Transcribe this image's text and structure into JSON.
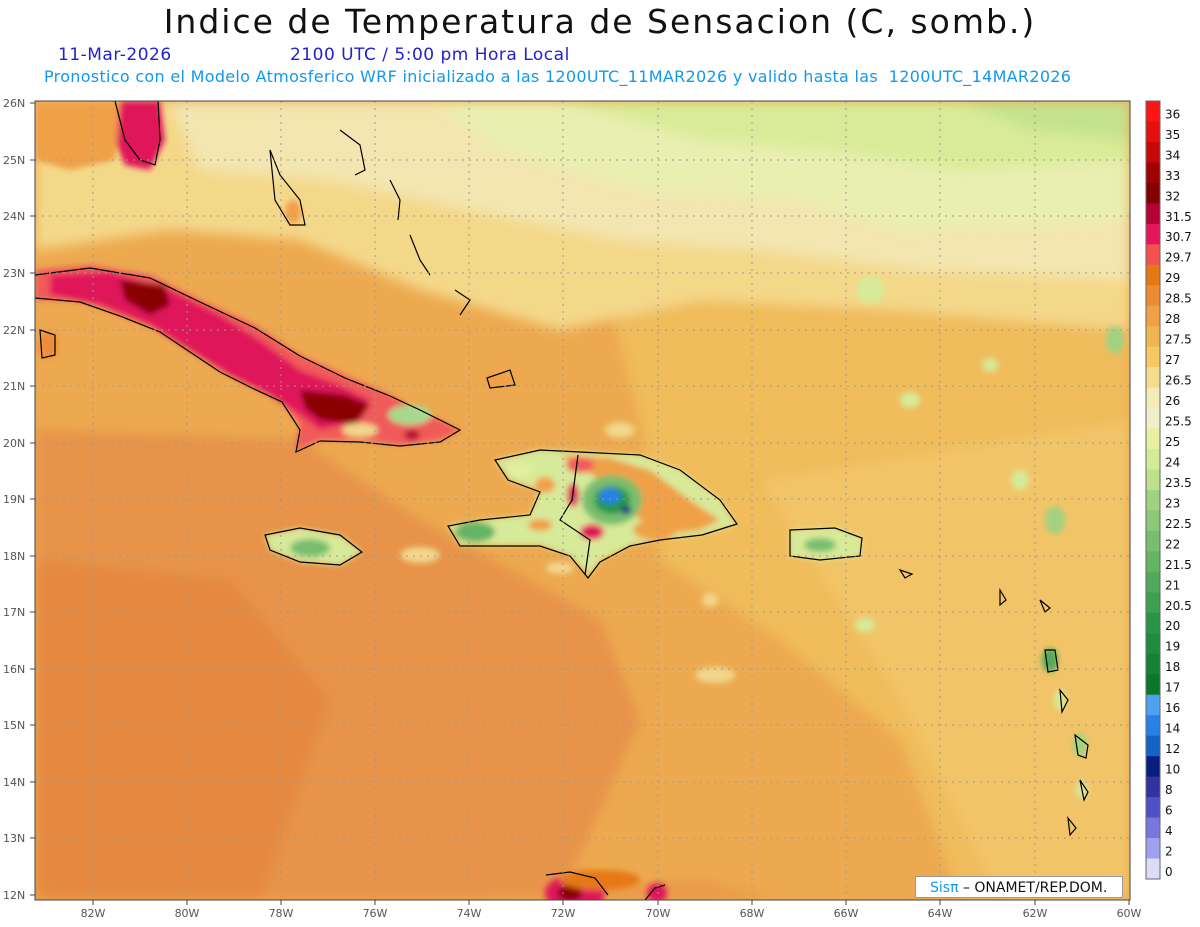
{
  "header": {
    "title": "Indice de Temperatura de Sensacion (C, somb.)",
    "date": "11-Mar-2026",
    "time": "2100 UTC / 5:00 pm Hora Local",
    "model_info": "Pronostico con el Modelo Atmosferico WRF inicializado a las 1200UTC_11MAR2026 y valido hasta las  1200UTC_14MAR2026"
  },
  "map": {
    "lat_labels": [
      "26N",
      "25N",
      "24N",
      "23N",
      "22N",
      "21N",
      "20N",
      "19N",
      "18N",
      "17N",
      "16N",
      "15N",
      "14N",
      "13N",
      "12N"
    ],
    "lon_labels": [
      "82W",
      "80W",
      "78W",
      "76W",
      "74W",
      "72W",
      "70W",
      "68W",
      "66W",
      "64W",
      "62W",
      "60W"
    ]
  },
  "legend": {
    "levels": [
      {
        "label": "36",
        "color": "#ff1414"
      },
      {
        "label": "35",
        "color": "#e60e0e"
      },
      {
        "label": "34",
        "color": "#c80808"
      },
      {
        "label": "33",
        "color": "#a00000"
      },
      {
        "label": "32",
        "color": "#820000"
      },
      {
        "label": "31.5",
        "color": "#b40032"
      },
      {
        "label": "30.7",
        "color": "#e6145a"
      },
      {
        "label": "29.7",
        "color": "#f55050"
      },
      {
        "label": "29",
        "color": "#e67814"
      },
      {
        "label": "28.5",
        "color": "#eb8c32"
      },
      {
        "label": "28",
        "color": "#f0a046"
      },
      {
        "label": "27.5",
        "color": "#f0b450"
      },
      {
        "label": "27",
        "color": "#f5c864"
      },
      {
        "label": "26.5",
        "color": "#f5dc8c"
      },
      {
        "label": "26",
        "color": "#f5ebb4"
      },
      {
        "label": "25.5",
        "color": "#f0f0c8"
      },
      {
        "label": "25",
        "color": "#e6f0a0"
      },
      {
        "label": "24",
        "color": "#d2eb96"
      },
      {
        "label": "23.5",
        "color": "#bee18c"
      },
      {
        "label": "23",
        "color": "#a0d282"
      },
      {
        "label": "22.5",
        "color": "#8cc878"
      },
      {
        "label": "22",
        "color": "#78be6e"
      },
      {
        "label": "21.5",
        "color": "#64b464"
      },
      {
        "label": "21",
        "color": "#50aa5a"
      },
      {
        "label": "20.5",
        "color": "#3ca050"
      },
      {
        "label": "20",
        "color": "#289646"
      },
      {
        "label": "19",
        "color": "#1e8c3c"
      },
      {
        "label": "18",
        "color": "#148232"
      },
      {
        "label": "17",
        "color": "#0a7828"
      },
      {
        "label": "16",
        "color": "#50a0f0"
      },
      {
        "label": "14",
        "color": "#2882e6"
      },
      {
        "label": "12",
        "color": "#1464c8"
      },
      {
        "label": "10",
        "color": "#0a1e82"
      },
      {
        "label": "8",
        "color": "#3232a0"
      },
      {
        "label": "6",
        "color": "#5050c8"
      },
      {
        "label": "4",
        "color": "#7878dc"
      },
      {
        "label": "2",
        "color": "#a0a0f0"
      },
      {
        "label": "0",
        "color": "#dcdcfa"
      }
    ]
  },
  "credit": {
    "sis": "Sisπ",
    "text": "– ONAMET/REP.DOM."
  }
}
